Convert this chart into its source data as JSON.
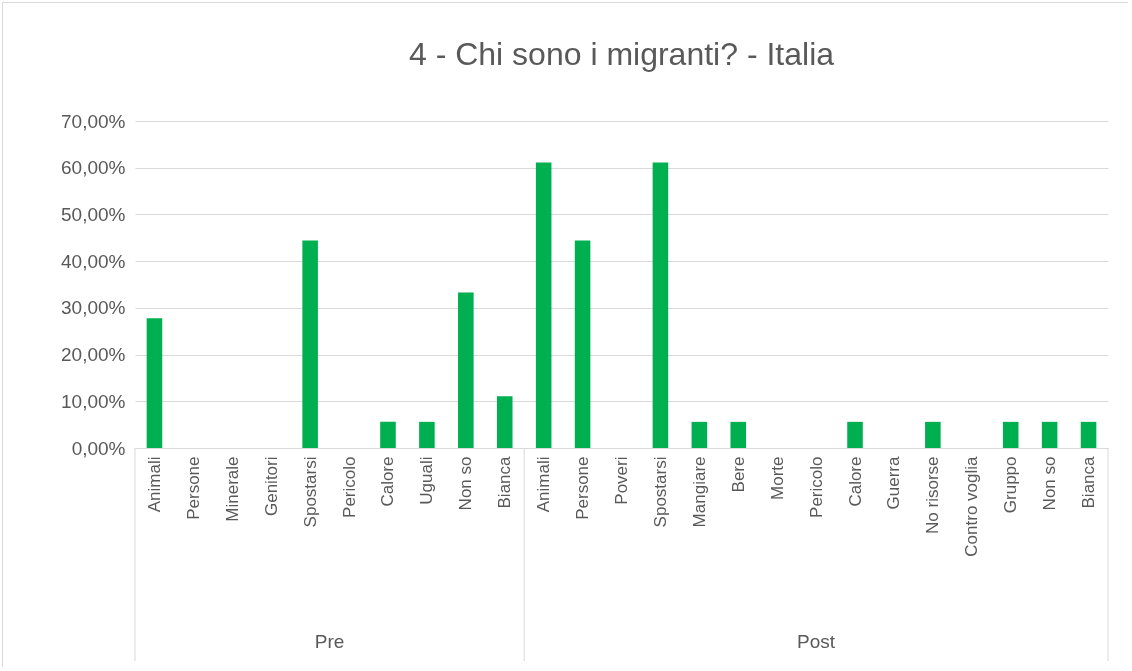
{
  "chart_data": {
    "type": "bar",
    "title": "4 - Chi sono i migranti? - Italia",
    "categories": [
      "Animali",
      "Persone",
      "Minerale",
      "Genitori",
      "Spostarsi",
      "Pericolo",
      "Calore",
      "Uguali",
      "Non so",
      "Bianca",
      "Animali",
      "Persone",
      "Poveri",
      "Spostarsi",
      "Mangiare",
      "Bere",
      "Morte",
      "Pericolo",
      "Calore",
      "Guerra",
      "No risorse",
      "Contro voglia",
      "Gruppo",
      "Non so",
      "Bianca"
    ],
    "values": [
      27.8,
      0,
      0,
      0,
      44.4,
      0,
      5.6,
      5.6,
      33.3,
      11.1,
      61.1,
      44.4,
      0,
      61.1,
      5.6,
      5.6,
      0,
      0,
      5.6,
      0,
      5.6,
      0,
      5.6,
      5.6,
      5.6
    ],
    "color": "#00b050",
    "ylim": [
      0,
      70
    ],
    "yticks": [
      {
        "value": 0,
        "label": "0,00%"
      },
      {
        "value": 10,
        "label": "10,00%"
      },
      {
        "value": 20,
        "label": "20,00%"
      },
      {
        "value": 30,
        "label": "30,00%"
      },
      {
        "value": 40,
        "label": "40,00%"
      },
      {
        "value": 50,
        "label": "50,00%"
      },
      {
        "value": 60,
        "label": "60,00%"
      },
      {
        "value": 70,
        "label": "70,00%"
      }
    ],
    "grid": "y",
    "annotations": [
      "Pre",
      "Post"
    ]
  }
}
